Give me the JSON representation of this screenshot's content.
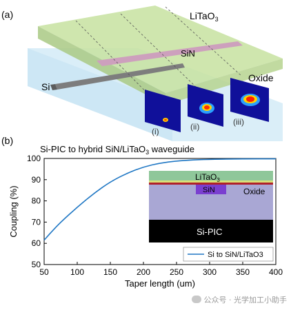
{
  "panel_a": {
    "label": "(a)",
    "layers": {
      "top": "LiTaO",
      "top_sub": "3",
      "middle": "SiN",
      "left": "Si",
      "bottom": "Oxide"
    },
    "modes": [
      "(i)",
      "(ii)",
      "(iii)"
    ],
    "colors": {
      "litao3": "#b9d98a",
      "sin": "#c9a0b6",
      "si": "#808080",
      "oxide": "#cfe8f5"
    }
  },
  "panel_b": {
    "label": "(b)",
    "title": "Si-PIC to hybrid SiN/LiTaO",
    "title_sub": "3",
    "title_tail": " waveguide",
    "inset": {
      "litao3": "LiTaO",
      "litao3_sub": "3",
      "sin": "SiN",
      "oxide": "Oxide",
      "si_pic": "Si-PIC"
    }
  },
  "chart_data": {
    "type": "line",
    "title": "Si-PIC to hybrid SiN/LiTaO3 waveguide",
    "xlabel": "Taper length (um)",
    "ylabel": "Coupling (%)",
    "xlim": [
      50,
      400
    ],
    "ylim": [
      50,
      100
    ],
    "xticks": [
      50,
      100,
      150,
      200,
      250,
      300,
      350,
      400
    ],
    "yticks": [
      50,
      60,
      70,
      80,
      90,
      100
    ],
    "legend_position": "bottom-right",
    "grid": false,
    "series": [
      {
        "name": "Si to SiN/LiTaO3",
        "color": "#1f77c4",
        "x": [
          50,
          60,
          75,
          100,
          125,
          150,
          175,
          200,
          225,
          250,
          275,
          300,
          350,
          400
        ],
        "y": [
          61.5,
          65,
          70,
          77,
          83.5,
          89,
          93,
          96,
          97.8,
          98.8,
          99.3,
          99.6,
          99.8,
          99.8
        ]
      }
    ]
  },
  "watermark": "公众号 · 光学加工小助手"
}
